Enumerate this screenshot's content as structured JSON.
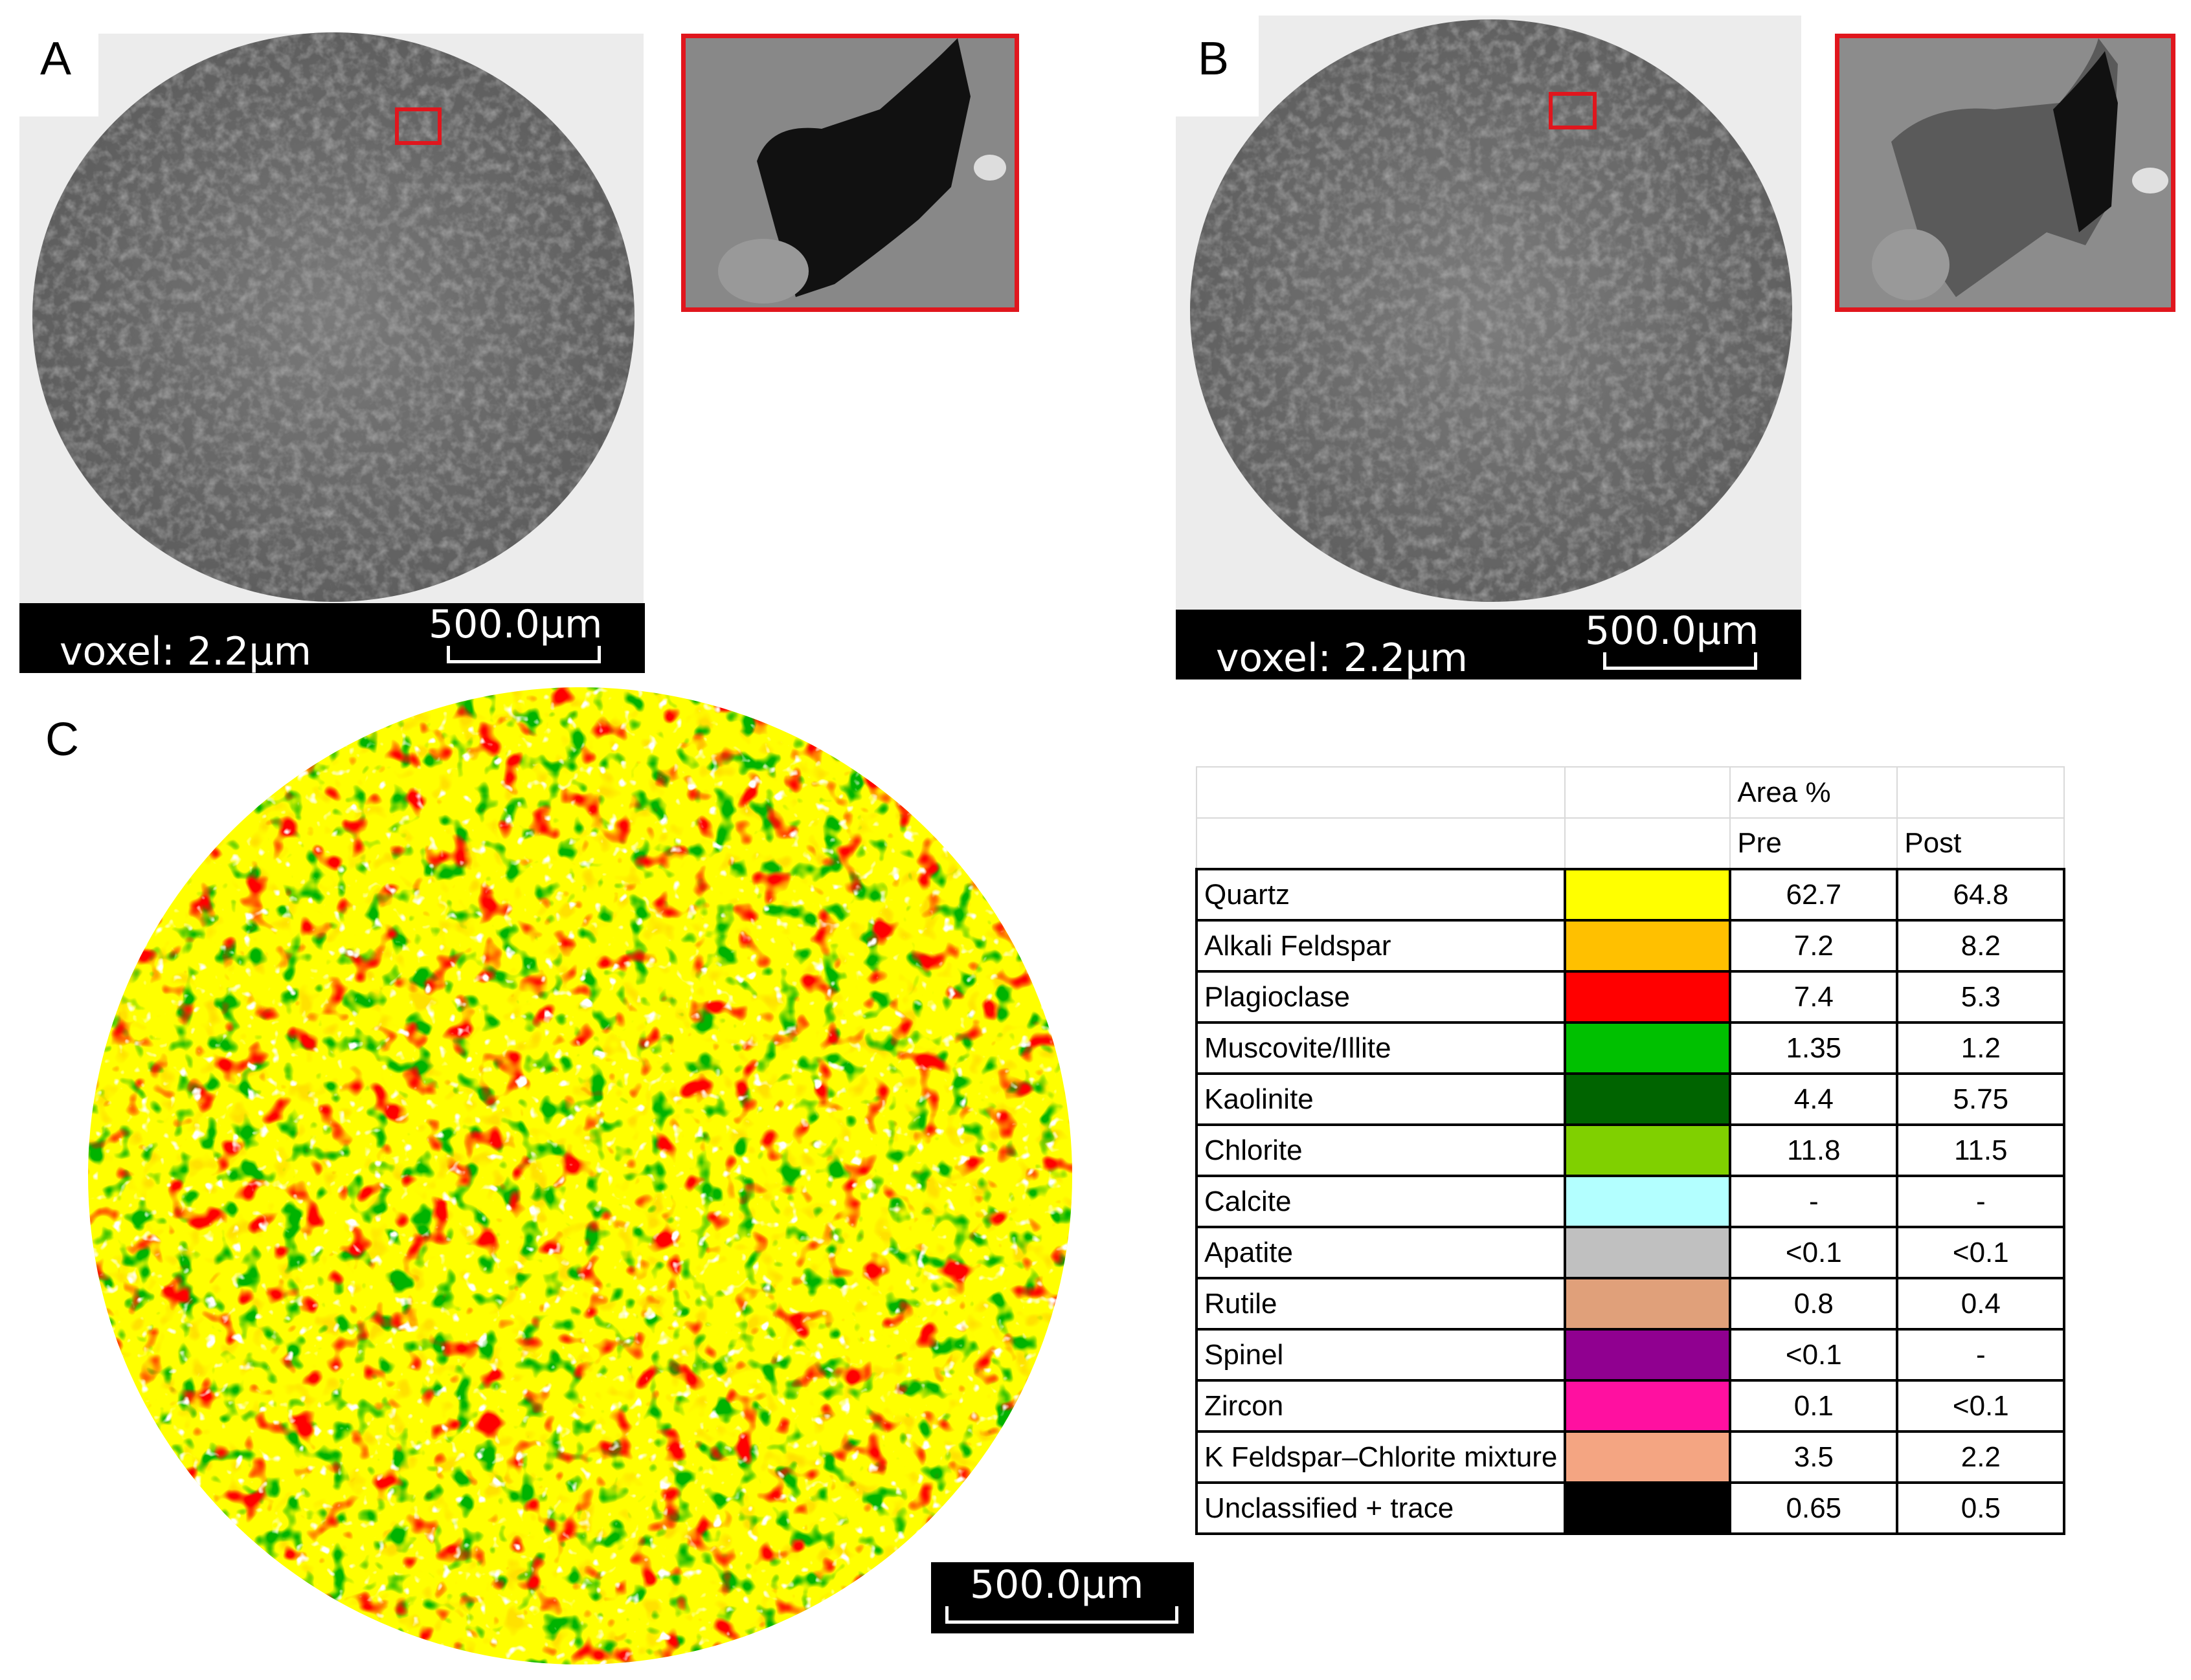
{
  "panels": {
    "A": {
      "label": "A",
      "voxel_text": "voxel: 2.2µm",
      "scale_text": "500.0µm"
    },
    "B": {
      "label": "B",
      "voxel_text": "voxel: 2.2µm",
      "scale_text": "500.0µm"
    },
    "C": {
      "label": "C",
      "scale_text": "500.0µm"
    }
  },
  "table": {
    "header_group": "Area %",
    "col_pre": "Pre",
    "col_post": "Post",
    "rows": [
      {
        "name": "Quartz",
        "color": "#ffff00",
        "pre": "62.7",
        "post": "64.8"
      },
      {
        "name": "Alkali Feldspar",
        "color": "#ffc000",
        "pre": "7.2",
        "post": "8.2"
      },
      {
        "name": "Plagioclase",
        "color": "#ff0000",
        "pre": "7.4",
        "post": "5.3"
      },
      {
        "name": "Muscovite/Illite",
        "color": "#00c000",
        "pre": "1.35",
        "post": "1.2"
      },
      {
        "name": "Kaolinite",
        "color": "#006400",
        "pre": "4.4",
        "post": "5.75"
      },
      {
        "name": "Chlorite",
        "color": "#80d000",
        "pre": "11.8",
        "post": "11.5"
      },
      {
        "name": "Calcite",
        "color": "#b3ffff",
        "pre": "-",
        "post": "-"
      },
      {
        "name": "Apatite",
        "color": "#c0c0c0",
        "pre": "<0.1",
        "post": "<0.1"
      },
      {
        "name": "Rutile",
        "color": "#e0a07a",
        "pre": "0.8",
        "post": "0.4"
      },
      {
        "name": "Spinel",
        "color": "#900090",
        "pre": "<0.1",
        "post": "-"
      },
      {
        "name": "Zircon",
        "color": "#ff10a0",
        "pre": "0.1",
        "post": "<0.1"
      },
      {
        "name": "K Feldspar–Chlorite mixture",
        "color": "#f4a582",
        "pre": "3.5",
        "post": "2.2"
      },
      {
        "name": "Unclassified + trace",
        "color": "#000000",
        "pre": "0.65",
        "post": "0.5"
      }
    ]
  }
}
